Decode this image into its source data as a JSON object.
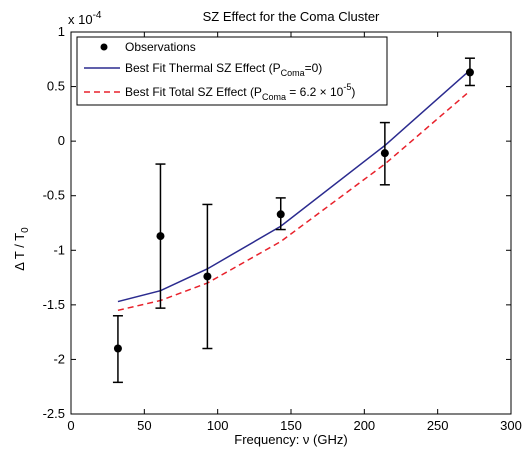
{
  "chart_data": {
    "type": "line",
    "title": "SZ Effect for the Coma Cluster",
    "xlabel": "Frequency: ν (GHz)",
    "ylabel": "Δ T / T",
    "ylabel_sub": "0",
    "y_scale_base": "x 10",
    "y_scale_exp": "-4",
    "xlim": [
      0,
      300
    ],
    "ylim": [
      -2.5,
      1
    ],
    "grid": false,
    "legend_position": "top-left",
    "x_ticks": [
      "0",
      "50",
      "100",
      "150",
      "200",
      "250",
      "300"
    ],
    "y_ticks": [
      "-2.5",
      "-2",
      "-1.5",
      "-1",
      "-0.5",
      "0",
      "0.5",
      "1"
    ],
    "observations": {
      "name": "Observations",
      "color": "#000000",
      "points": [
        {
          "x": 32,
          "y": -1.9,
          "ylow": -2.21,
          "yhigh": -1.6
        },
        {
          "x": 61,
          "y": -0.87,
          "ylow": -1.53,
          "yhigh": -0.21
        },
        {
          "x": 93,
          "y": -1.24,
          "ylow": -1.9,
          "yhigh": -0.58
        },
        {
          "x": 143,
          "y": -0.67,
          "ylow": -0.81,
          "yhigh": -0.52
        },
        {
          "x": 214,
          "y": -0.11,
          "ylow": -0.4,
          "yhigh": 0.17
        },
        {
          "x": 272,
          "y": 0.63,
          "ylow": 0.51,
          "yhigh": 0.76
        }
      ]
    },
    "series": [
      {
        "name": "Best Fit Thermal SZ Effect (P",
        "name_sub": "Coma",
        "name_rest": "=0)",
        "color": "#2b2b8f",
        "dash": "solid",
        "x": [
          32,
          61,
          93,
          143,
          214,
          272
        ],
        "y": [
          -1.47,
          -1.37,
          -1.17,
          -0.78,
          -0.04,
          0.65
        ]
      },
      {
        "name": "Best Fit Total SZ Effect (P",
        "name_sub": "Coma",
        "name_rest": " = 6.2 × 10",
        "name_sup": "-5",
        "name_end": ")",
        "color": "#e8212b",
        "dash": "dashed",
        "x": [
          32,
          61,
          93,
          143,
          214,
          272
        ],
        "y": [
          -1.55,
          -1.46,
          -1.3,
          -0.92,
          -0.21,
          0.46
        ]
      }
    ]
  }
}
